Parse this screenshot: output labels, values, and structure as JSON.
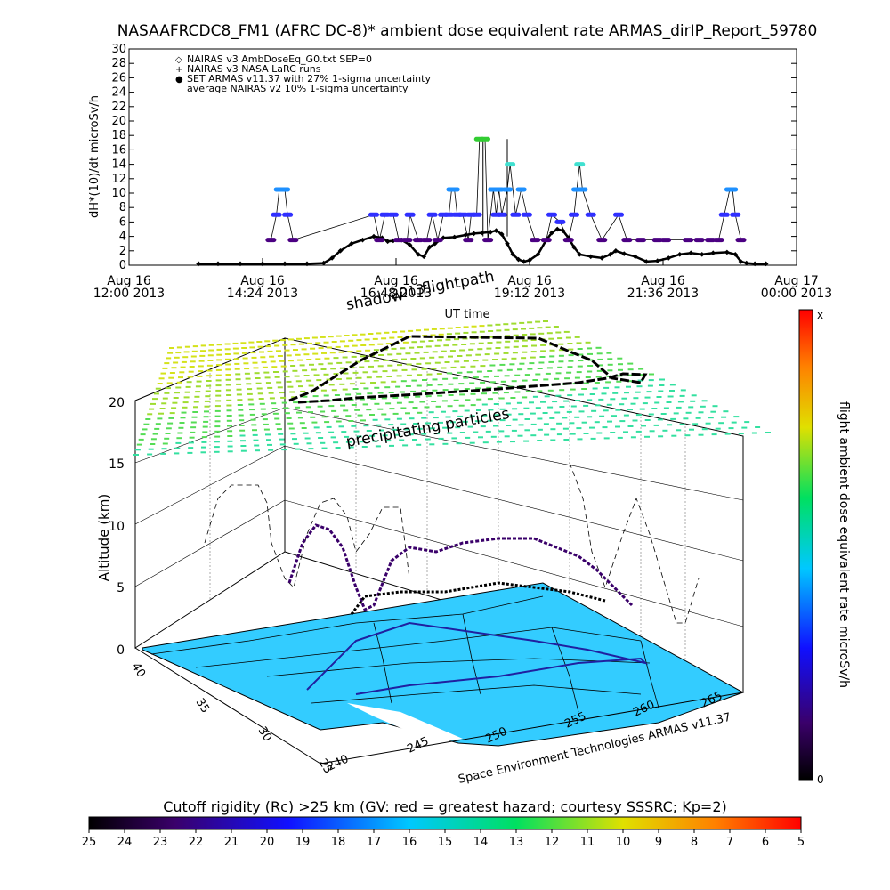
{
  "colors": {
    "nairas_v3": "#000000",
    "armas_low": "#4b0082",
    "armas_mid": "#3030ff",
    "armas_high": "#1e90ff",
    "armas_peak": "#40e0d0",
    "armas_max": "#32cd32",
    "map_fill": "#33ccff",
    "shadow_grid": "#9acd32"
  },
  "chart_data": [
    {
      "type": "scatter",
      "title": "NASAAFRCDC8_FM1 (AFRC DC-8)* ambient dose equivalent rate ARMAS_dirIP_Report_59780",
      "xlabel": "UT time",
      "ylabel": "dH*(10)/dt microSv/h",
      "ylim": [
        0,
        30
      ],
      "yticks": [
        "0",
        "2",
        "4",
        "6",
        "8",
        "10",
        "12",
        "14",
        "16",
        "18",
        "20",
        "22",
        "24",
        "26",
        "28",
        "30"
      ],
      "xlim_hours": [
        12.0,
        24.0
      ],
      "xticks": [
        {
          "date": "Aug 16",
          "time": "12:00 2013"
        },
        {
          "date": "Aug 16",
          "time": "14:24 2013"
        },
        {
          "date": "Aug 16",
          "time": "16:48 2013"
        },
        {
          "date": "Aug 16",
          "time": "19:12 2013"
        },
        {
          "date": "Aug 16",
          "time": "21:36 2013"
        },
        {
          "date": "Aug 17",
          "time": "00:00 2013"
        }
      ],
      "legend_position": "top-left",
      "legend": [
        {
          "symbol": "◇",
          "label": "NAIRAS v3 AmbDoseEq_G0.txt SEP=0"
        },
        {
          "symbol": "+",
          "label": "NAIRAS v3 NASA LaRC runs"
        },
        {
          "symbol": "●",
          "label": "SET ARMAS v11.37 with 27% 1-sigma uncertainty"
        },
        {
          "symbol": "",
          "label": "average NAIRAS v2 10% 1-sigma uncertainty"
        }
      ],
      "series": [
        {
          "name": "NAIRAS v3 AmbDoseEq_G0.txt SEP=0",
          "points": [
            [
              13.25,
              0.2
            ],
            [
              13.6,
              0.2
            ],
            [
              14.0,
              0.2
            ],
            [
              14.4,
              0.2
            ],
            [
              14.8,
              0.2
            ],
            [
              15.2,
              0.2
            ],
            [
              15.5,
              0.3
            ],
            [
              15.65,
              1.0
            ],
            [
              15.8,
              2.0
            ],
            [
              16.0,
              3.0
            ],
            [
              16.2,
              3.5
            ],
            [
              16.4,
              4.0
            ],
            [
              16.55,
              3.8
            ],
            [
              16.65,
              3.3
            ],
            [
              16.75,
              3.4
            ],
            [
              16.9,
              3.5
            ],
            [
              17.05,
              2.8
            ],
            [
              17.2,
              1.5
            ],
            [
              17.3,
              1.2
            ],
            [
              17.4,
              2.5
            ],
            [
              17.5,
              3.0
            ],
            [
              17.65,
              3.8
            ],
            [
              17.85,
              3.9
            ],
            [
              18.05,
              4.2
            ],
            [
              18.2,
              4.4
            ],
            [
              18.35,
              4.5
            ],
            [
              18.5,
              4.6
            ],
            [
              18.6,
              4.8
            ],
            [
              18.7,
              4.3
            ],
            [
              18.8,
              3.0
            ],
            [
              18.9,
              1.5
            ],
            [
              19.0,
              0.8
            ],
            [
              19.1,
              0.5
            ],
            [
              19.2,
              0.7
            ],
            [
              19.35,
              1.5
            ],
            [
              19.5,
              3.5
            ],
            [
              19.6,
              4.5
            ],
            [
              19.7,
              5.0
            ],
            [
              19.8,
              4.8
            ],
            [
              19.9,
              3.8
            ],
            [
              20.0,
              2.5
            ],
            [
              20.1,
              1.5
            ],
            [
              20.3,
              1.2
            ],
            [
              20.5,
              1.0
            ],
            [
              20.65,
              1.5
            ],
            [
              20.75,
              2.0
            ],
            [
              20.9,
              1.6
            ],
            [
              21.1,
              1.2
            ],
            [
              21.3,
              0.5
            ],
            [
              21.5,
              0.6
            ],
            [
              21.7,
              1.0
            ],
            [
              21.9,
              1.5
            ],
            [
              22.1,
              1.7
            ],
            [
              22.3,
              1.5
            ],
            [
              22.5,
              1.7
            ],
            [
              22.75,
              1.8
            ],
            [
              22.9,
              1.5
            ],
            [
              23.0,
              0.5
            ],
            [
              23.1,
              0.3
            ],
            [
              23.25,
              0.2
            ],
            [
              23.45,
              0.2
            ]
          ]
        },
        {
          "name": "SET ARMAS v11.37 with 27% 1-sigma uncertainty",
          "points": [
            [
              14.55,
              3.5
            ],
            [
              14.65,
              7.0
            ],
            [
              14.7,
              10.5
            ],
            [
              14.8,
              10.5
            ],
            [
              14.85,
              7.0
            ],
            [
              14.95,
              3.5
            ],
            [
              16.4,
              7.0
            ],
            [
              16.5,
              3.5
            ],
            [
              16.6,
              7.0
            ],
            [
              16.75,
              7.0
            ],
            [
              16.85,
              3.5
            ],
            [
              17.0,
              3.5
            ],
            [
              17.05,
              7.0
            ],
            [
              17.2,
              3.5
            ],
            [
              17.35,
              3.5
            ],
            [
              17.45,
              7.0
            ],
            [
              17.55,
              3.5
            ],
            [
              17.65,
              7.0
            ],
            [
              17.75,
              7.0
            ],
            [
              17.8,
              10.5
            ],
            [
              17.85,
              10.5
            ],
            [
              17.9,
              7.0
            ],
            [
              18.0,
              7.0
            ],
            [
              18.1,
              3.5
            ],
            [
              18.15,
              7.0
            ],
            [
              18.25,
              7.0
            ],
            [
              18.3,
              17.5
            ],
            [
              18.4,
              17.5
            ],
            [
              18.45,
              3.5
            ],
            [
              18.55,
              10.5
            ],
            [
              18.6,
              7.0
            ],
            [
              18.65,
              10.5
            ],
            [
              18.7,
              7.0
            ],
            [
              18.8,
              10.5
            ],
            [
              18.85,
              14.0
            ],
            [
              18.95,
              7.0
            ],
            [
              19.05,
              10.5
            ],
            [
              19.15,
              7.0
            ],
            [
              19.3,
              3.5
            ],
            [
              19.5,
              3.5
            ],
            [
              19.6,
              7.0
            ],
            [
              19.75,
              6.0
            ],
            [
              19.9,
              3.5
            ],
            [
              20.0,
              7.0
            ],
            [
              20.05,
              10.5
            ],
            [
              20.1,
              14.0
            ],
            [
              20.15,
              10.5
            ],
            [
              20.3,
              7.0
            ],
            [
              20.5,
              3.5
            ],
            [
              20.8,
              7.0
            ],
            [
              20.95,
              3.5
            ],
            [
              21.2,
              3.5
            ],
            [
              21.5,
              3.5
            ],
            [
              21.65,
              3.5
            ],
            [
              22.05,
              3.5
            ],
            [
              22.25,
              3.5
            ],
            [
              22.45,
              3.5
            ],
            [
              22.6,
              3.5
            ],
            [
              22.7,
              7.0
            ],
            [
              22.8,
              10.5
            ],
            [
              22.85,
              10.5
            ],
            [
              22.9,
              7.0
            ],
            [
              23.0,
              3.5
            ]
          ]
        }
      ]
    },
    {
      "type": "scatter",
      "title": "",
      "zlabel": "Altitude (km)",
      "zticks": [
        "0",
        "5",
        "10",
        "15",
        "20"
      ],
      "lat_ticks": [
        "40",
        "35",
        "30",
        "25"
      ],
      "lon_ticks": [
        "240",
        "245",
        "250",
        "255",
        "260",
        "265"
      ],
      "annotations": [
        "flightpath",
        "shadow",
        "2013",
        "precipitating particles",
        "UT time"
      ],
      "credit": "Space Environment Technologies ARMAS v11.37",
      "colorbar_label": "flight ambient dose equivalent rate microSv/h",
      "colorbar_top": "x",
      "colorbar_bottom": "0"
    },
    {
      "type": "heatmap",
      "title": "Cutoff rigidity (Rc) >25 km (GV: red = greatest hazard; courtesy SSSRC; Kp=2)",
      "ticks": [
        "25",
        "24",
        "23",
        "22",
        "21",
        "20",
        "19",
        "18",
        "17",
        "16",
        "15",
        "14",
        "13",
        "12",
        "11",
        "10",
        "9",
        "8",
        "7",
        "6",
        "5"
      ],
      "range": [
        25,
        5
      ]
    }
  ]
}
